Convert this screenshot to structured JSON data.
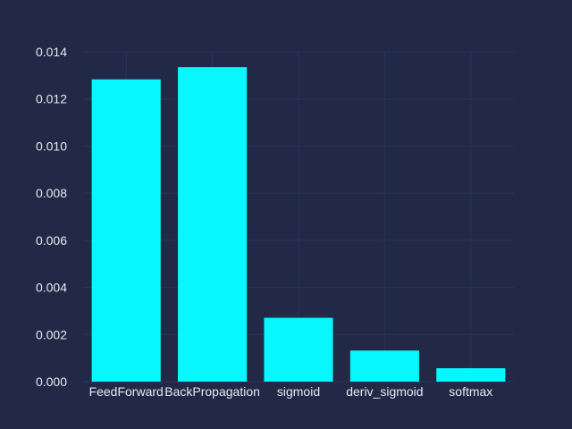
{
  "chart_data": {
    "type": "bar",
    "categories": [
      "FeedForward",
      "BackPropagation",
      "sigmoid",
      "deriv_sigmoid",
      "softmax"
    ],
    "values": [
      0.01283,
      0.01335,
      0.00271,
      0.00132,
      0.00057
    ],
    "title": "",
    "xlabel": "",
    "ylabel": "",
    "ylim": [
      0,
      0.014
    ],
    "yticks": [
      "0.000",
      "0.002",
      "0.004",
      "0.006",
      "0.008",
      "0.010",
      "0.012",
      "0.014"
    ],
    "grid": true,
    "colors": {
      "background": "#212946",
      "bar": "#08F7FE",
      "grid": "#2A3459",
      "text": "#e6e8f0"
    }
  }
}
